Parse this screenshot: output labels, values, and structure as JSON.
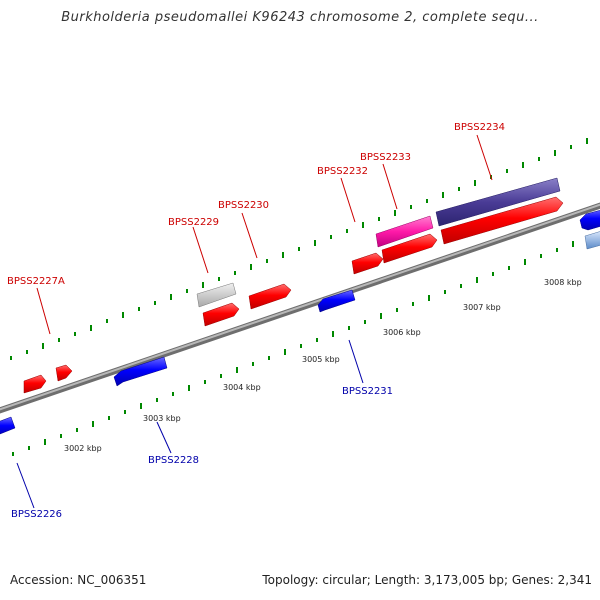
{
  "title": "Burkholderia pseudomallei K96243 chromosome 2, complete sequ...",
  "footer": {
    "accession": "Accession: NC_006351",
    "summary": "Topology: circular; Length: 3,173,005 bp; Genes: 2,341"
  },
  "colors": {
    "forward_gene": "#ff0000",
    "reverse_gene": "#0000ff",
    "forward_label": "#cc0000",
    "reverse_label": "#0000aa",
    "backbone": "#888888",
    "tick": "#008800"
  },
  "scale_labels": [
    "3002 kbp",
    "3003 kbp",
    "3004 kbp",
    "3005 kbp",
    "3006 kbp",
    "3007 kbp",
    "3008 kbp"
  ],
  "gene_labels": {
    "top": [
      "BPSS2227A",
      "BPSS2229",
      "BPSS2230",
      "BPSS2232",
      "BPSS2233",
      "BPSS2234"
    ],
    "bottom": [
      "BPSS2226",
      "BPSS2228",
      "BPSS2231"
    ]
  }
}
